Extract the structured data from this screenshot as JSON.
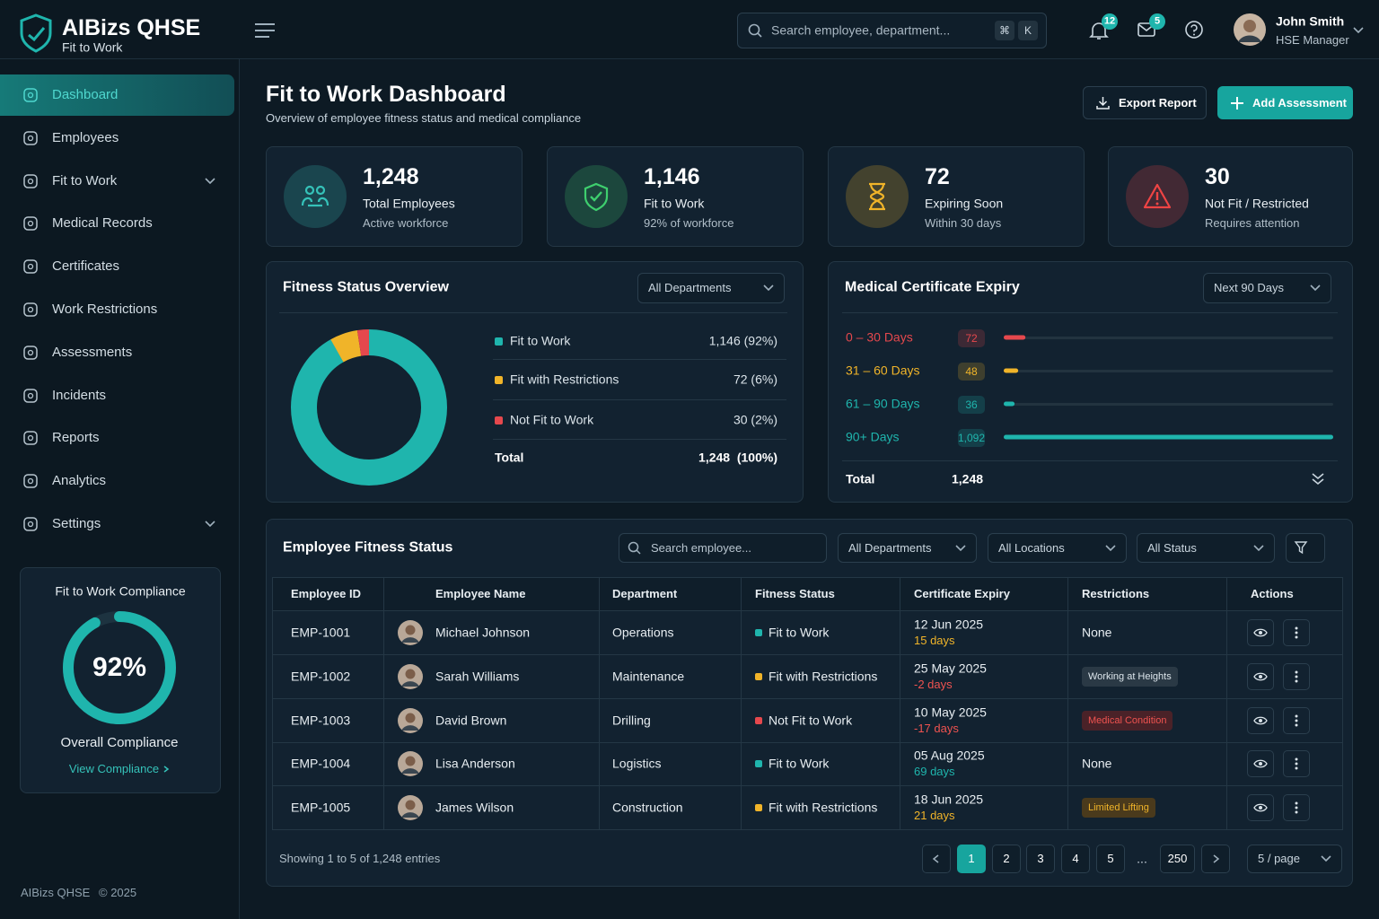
{
  "brand": {
    "name": "AIBizs QHSE",
    "subtitle": "Fit to Work"
  },
  "search_placeholder": "Search employee, department...",
  "shortcut": [
    "⌘",
    "K"
  ],
  "notifications": "12",
  "messages": "5",
  "user": {
    "name": "John Smith",
    "role": "HSE Manager"
  },
  "nav": [
    {
      "label": "Dashboard",
      "active": true
    },
    {
      "label": "Employees"
    },
    {
      "label": "Fit to Work",
      "expandable": true
    },
    {
      "label": "Medical Records"
    },
    {
      "label": "Certificates"
    },
    {
      "label": "Work Restrictions"
    },
    {
      "label": "Assessments"
    },
    {
      "label": "Incidents"
    },
    {
      "label": "Reports"
    },
    {
      "label": "Analytics"
    },
    {
      "label": "Settings",
      "expandable": true
    }
  ],
  "compliance": {
    "title": "Fit to Work Compliance",
    "percent": 92,
    "percent_label": "92%",
    "caption": "Overall Compliance",
    "link": "View Compliance"
  },
  "footer": {
    "brand": "AIBizs QHSE",
    "copyright": "© 2025"
  },
  "header": {
    "title": "Fit to Work Dashboard",
    "subtitle": "Overview of employee fitness status and medical compliance",
    "export": "Export Report",
    "add": "Add Assessment"
  },
  "stats": [
    {
      "value": "1,248",
      "label": "Total Employees",
      "sub": "Active workforce",
      "color": "#35c2b9"
    },
    {
      "value": "1,146",
      "label": "Fit to Work",
      "sub": "92% of workforce",
      "color": "#3ecf6e"
    },
    {
      "value": "72",
      "label": "Expiring Soon",
      "sub": "Within 30 days",
      "color": "#f0b429"
    },
    {
      "value": "30",
      "label": "Not Fit / Restricted",
      "sub": "Requires attention",
      "color": "#ef4444"
    }
  ],
  "fitness": {
    "title": "Fitness Status Overview",
    "filter": "All Departments",
    "rows": [
      {
        "label": "Fit to Work",
        "value": 1146,
        "value_label": "1,146 (92%)",
        "color": "#1fb5ad"
      },
      {
        "label": "Fit with Restrictions",
        "value": 72,
        "value_label": "72 (6%)",
        "color": "#f0b429"
      },
      {
        "label": "Not Fit to Work",
        "value": 30,
        "value_label": "30 (2%)",
        "color": "#e5484d"
      }
    ],
    "total_label": "Total",
    "total": "1,248  (100%)"
  },
  "expiry": {
    "title": "Medical Certificate Expiry",
    "filter": "Next 90 Days",
    "rows": [
      {
        "label": "0 – 30 Days",
        "value": 72,
        "value_label": "72",
        "color": "#e5484d"
      },
      {
        "label": "31 – 60 Days",
        "value": 48,
        "value_label": "48",
        "color": "#f0b429"
      },
      {
        "label": "61 – 90 Days",
        "value": 36,
        "value_label": "36",
        "color": "#1fb5ad"
      },
      {
        "label": "90+ Days",
        "value": 1092,
        "value_label": "1,092",
        "color": "#1fb5ad"
      }
    ],
    "total_label": "Total",
    "total": "1,248"
  },
  "table": {
    "title": "Employee Fitness Status",
    "search": "Search employee...",
    "filters": [
      "All Departments",
      "All Locations",
      "All Status"
    ],
    "columns": [
      "Employee ID",
      "Employee Name",
      "Department",
      "Fitness Status",
      "Certificate Expiry",
      "Restrictions",
      "Actions"
    ],
    "rows": [
      {
        "id": "EMP-1001",
        "name": "Michael Johnson",
        "department": "Operations",
        "status": "Fit to Work",
        "status_color": "#1fb5ad",
        "expiry": "12 Jun 2025",
        "days": "15 days",
        "days_color": "#f0b429",
        "restriction": "None",
        "restriction_style": "plain"
      },
      {
        "id": "EMP-1002",
        "name": "Sarah Williams",
        "department": "Maintenance",
        "status": "Fit with Restrictions",
        "status_color": "#f0b429",
        "expiry": "25 May 2025",
        "days": "-2 days",
        "days_color": "#ef5350",
        "restriction": "Working at Heights",
        "restriction_style": "gray"
      },
      {
        "id": "EMP-1003",
        "name": "David Brown",
        "department": "Drilling",
        "status": "Not Fit to Work",
        "status_color": "#e5484d",
        "expiry": "10 May 2025",
        "days": "-17 days",
        "days_color": "#ef5350",
        "restriction": "Medical Condition",
        "restriction_style": "red"
      },
      {
        "id": "EMP-1004",
        "name": "Lisa Anderson",
        "department": "Logistics",
        "status": "Fit to Work",
        "status_color": "#1fb5ad",
        "expiry": "05 Aug 2025",
        "days": "69 days",
        "days_color": "#1fb5ad",
        "restriction": "None",
        "restriction_style": "plain"
      },
      {
        "id": "EMP-1005",
        "name": "James Wilson",
        "department": "Construction",
        "status": "Fit with Restrictions",
        "status_color": "#f0b429",
        "expiry": "18 Jun 2025",
        "days": "21 days",
        "days_color": "#f0b429",
        "restriction": "Limited Lifting",
        "restriction_style": "amber"
      }
    ],
    "summary": "Showing 1 to 5 of 1,248 entries",
    "pages": [
      "1",
      "2",
      "3",
      "4",
      "5",
      "...",
      "250"
    ],
    "current_page": 0,
    "page_size": "5 / page"
  }
}
